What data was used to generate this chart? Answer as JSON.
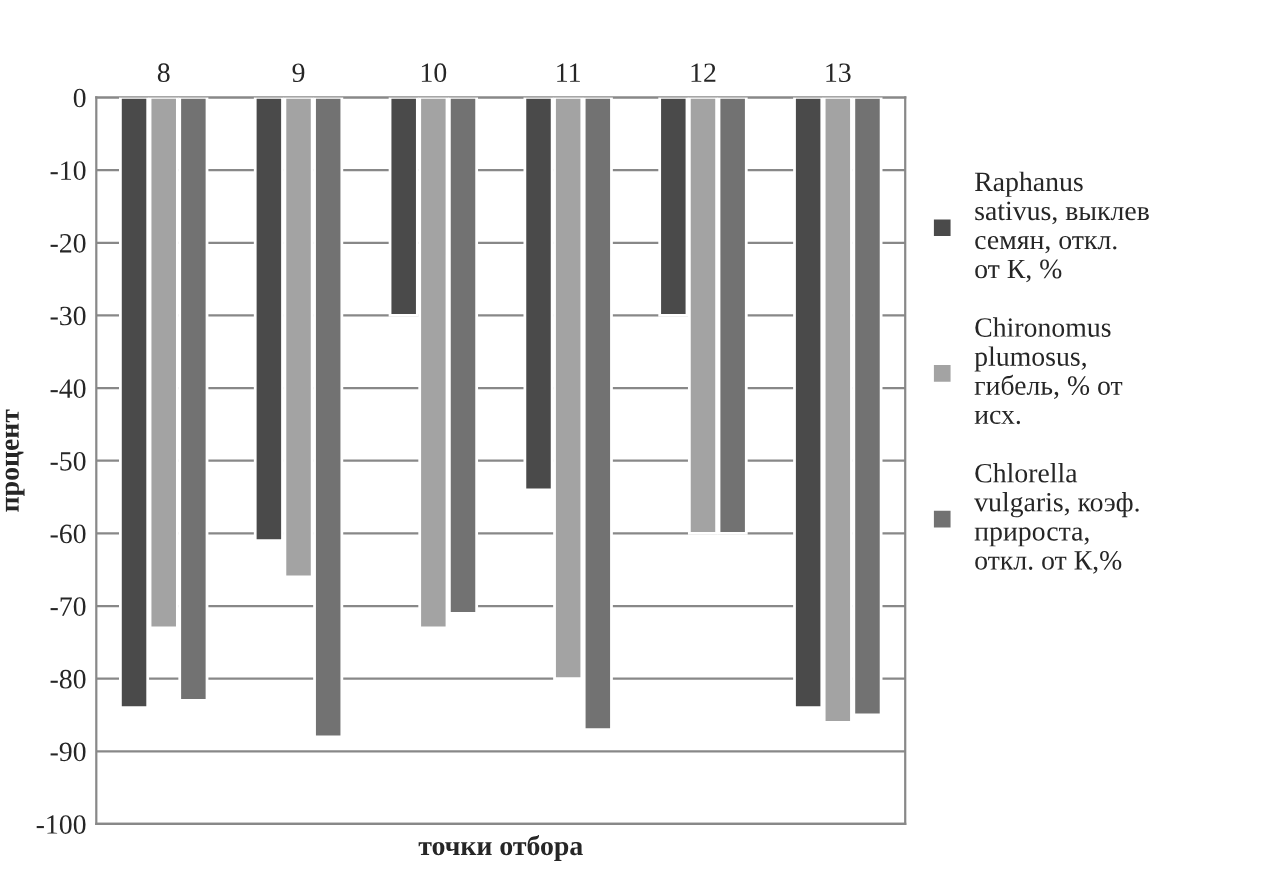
{
  "chart_data": {
    "type": "bar",
    "xlabel": "точки отбора",
    "ylabel": "процент",
    "categories": [
      "8",
      "9",
      "10",
      "11",
      "12",
      "13"
    ],
    "series": [
      {
        "name": "Raphanus\nsativus, выклев\nсемян, откл.\nот К, %",
        "color": "#4a4a4a",
        "values": [
          -84,
          -61,
          -30,
          -54,
          -30,
          -84
        ]
      },
      {
        "name": "Chironomus\nplumosus,\nгибель, % от\nисх.",
        "color": "#a3a3a3",
        "values": [
          -73,
          -66,
          -73,
          -80,
          -60,
          -86
        ]
      },
      {
        "name": "Chlorella\nvulgaris, коэф.\nприроста,\nоткл. от К,%",
        "color": "#727272",
        "values": [
          -83,
          -88,
          -71,
          -87,
          -60,
          -85
        ]
      }
    ],
    "ylim": [
      -100,
      0
    ],
    "yticks": [
      -100,
      -90,
      -80,
      -70,
      -60,
      -50,
      -40,
      -30,
      -20,
      -10,
      0
    ],
    "grid": "y",
    "legend": "right"
  }
}
